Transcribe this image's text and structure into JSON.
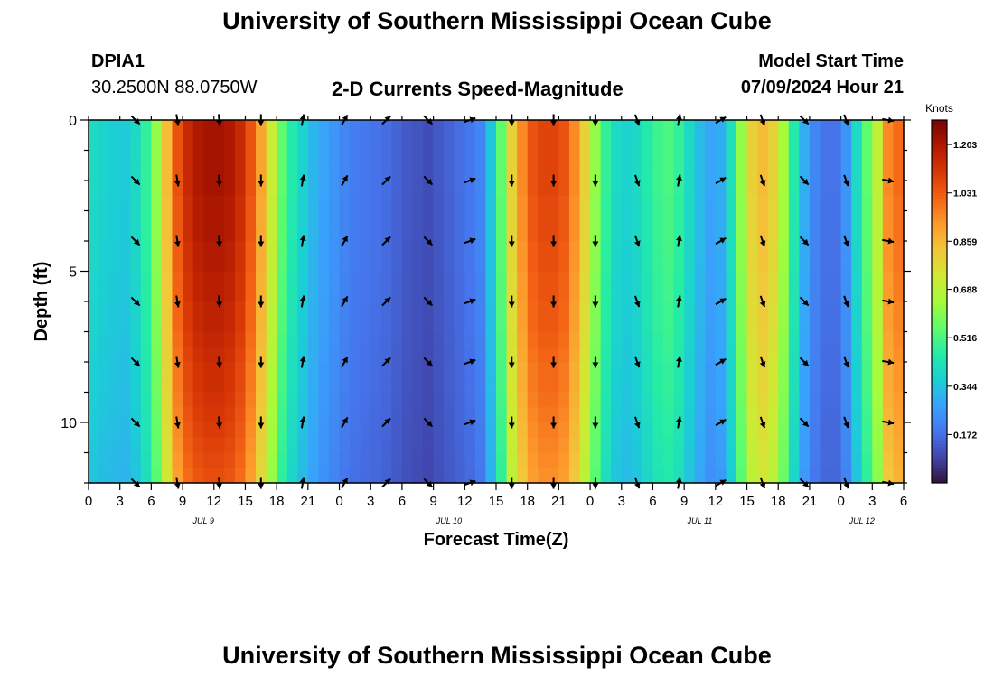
{
  "page": {
    "title": "University of Southern Mississippi Ocean Cube",
    "title_bottom": "University of Southern Mississippi Ocean Cube",
    "station_id": "DPIA1",
    "coordinates": "30.2500N  88.0750W",
    "chart_label": "2-D Currents Speed-Magnitude",
    "model_start_label": "Model Start Time",
    "model_start_value": "07/09/2024 Hour 21"
  },
  "colors": {
    "colormap": [
      "#30123b",
      "#4145ab",
      "#4675ed",
      "#39a2fc",
      "#1bcfd4",
      "#24eca6",
      "#61fc6c",
      "#a4fc3b",
      "#d1e834",
      "#f3c63a",
      "#fe9b2d",
      "#f36315",
      "#d93806",
      "#b11901",
      "#7a0403"
    ],
    "axis": "#000000"
  },
  "chart_data": {
    "type": "heatmap",
    "title": "2-D Currents Speed-Magnitude",
    "xlabel": "Forecast Time(Z)",
    "ylabel": "Depth (ft)",
    "x_range_hours": [
      0,
      78
    ],
    "y_range_ft": [
      0,
      12
    ],
    "x_ticks": [
      "0",
      "3",
      "6",
      "9",
      "12",
      "15",
      "18",
      "21",
      "0",
      "3",
      "6",
      "9",
      "12",
      "15",
      "18",
      "21",
      "0",
      "3",
      "6",
      "9",
      "12",
      "15",
      "18",
      "21",
      "0",
      "3",
      "6"
    ],
    "y_ticks": [
      "0",
      "5",
      "10"
    ],
    "date_labels": [
      {
        "text": "JUL 9",
        "hour": 11
      },
      {
        "text": "JUL 10",
        "hour": 34.5
      },
      {
        "text": "JUL 11",
        "hour": 58.5
      },
      {
        "text": "JUL 12",
        "hour": 74
      }
    ],
    "colorbar": {
      "label": "Knots",
      "min": 0.0,
      "max": 1.29,
      "ticks": [
        "1.203",
        "1.031",
        "0.859",
        "0.688",
        "0.516",
        "0.344",
        "0.172"
      ],
      "tick_values": [
        1.203,
        1.031,
        0.859,
        0.688,
        0.516,
        0.344,
        0.172
      ]
    },
    "time_hours": [
      0,
      1,
      2,
      3,
      4,
      5,
      6,
      7,
      8,
      9,
      10,
      11,
      12,
      13,
      14,
      15,
      16,
      17,
      18,
      19,
      20,
      21,
      22,
      23,
      24,
      25,
      26,
      27,
      28,
      29,
      30,
      31,
      32,
      33,
      34,
      35,
      36,
      37,
      38,
      39,
      40,
      41,
      42,
      43,
      44,
      45,
      46,
      47,
      48,
      49,
      50,
      51,
      52,
      53,
      54,
      55,
      56,
      57,
      58,
      59,
      60,
      61,
      62,
      63,
      64,
      65,
      66,
      67,
      68,
      69,
      70,
      71,
      72,
      73,
      74,
      75,
      76,
      77
    ],
    "speed_profile_knots": [
      0.4,
      0.38,
      0.37,
      0.36,
      0.4,
      0.48,
      0.62,
      0.85,
      1.05,
      1.15,
      1.2,
      1.22,
      1.22,
      1.2,
      1.15,
      1.05,
      0.9,
      0.72,
      0.55,
      0.45,
      0.38,
      0.32,
      0.28,
      0.25,
      0.22,
      0.2,
      0.19,
      0.18,
      0.17,
      0.15,
      0.13,
      0.12,
      0.11,
      0.13,
      0.15,
      0.17,
      0.19,
      0.22,
      0.35,
      0.55,
      0.8,
      0.95,
      1.05,
      1.08,
      1.08,
      1.05,
      0.95,
      0.8,
      0.62,
      0.48,
      0.4,
      0.38,
      0.4,
      0.45,
      0.5,
      0.52,
      0.48,
      0.4,
      0.33,
      0.28,
      0.3,
      0.42,
      0.62,
      0.8,
      0.85,
      0.8,
      0.65,
      0.45,
      0.3,
      0.22,
      0.18,
      0.18,
      0.25,
      0.4,
      0.55,
      0.7,
      0.95,
      1.0
    ],
    "depth_rows_ft": [
      0.25,
      0.75,
      1.25,
      1.75,
      2.25,
      2.75,
      3.25,
      3.75,
      4.25,
      4.75,
      5.25,
      5.75,
      6.25,
      6.75,
      7.25,
      7.75,
      8.25,
      8.75,
      9.25,
      9.75,
      10.25,
      10.75,
      11.25,
      11.75
    ],
    "depth_factor": [
      1.0,
      1.0,
      1.0,
      1.0,
      1.0,
      0.99,
      0.99,
      0.99,
      0.98,
      0.98,
      0.97,
      0.97,
      0.96,
      0.96,
      0.95,
      0.94,
      0.93,
      0.93,
      0.92,
      0.91,
      0.9,
      0.89,
      0.88,
      0.87
    ],
    "vector_times_hours": [
      4.5,
      8.5,
      12.5,
      16.5,
      20.5,
      24.5,
      28.5,
      32.5,
      36.5,
      40.5,
      44.5,
      48.5,
      52.5,
      56.5,
      60.5,
      64.5,
      68.5,
      72.5,
      76.5
    ],
    "vector_depths_ft": [
      0,
      2,
      4,
      6,
      8,
      10,
      12
    ],
    "vector_directions_deg": [
      135,
      170,
      175,
      180,
      10,
      30,
      45,
      135,
      70,
      180,
      180,
      180,
      160,
      10,
      60,
      160,
      135,
      160,
      100
    ]
  }
}
